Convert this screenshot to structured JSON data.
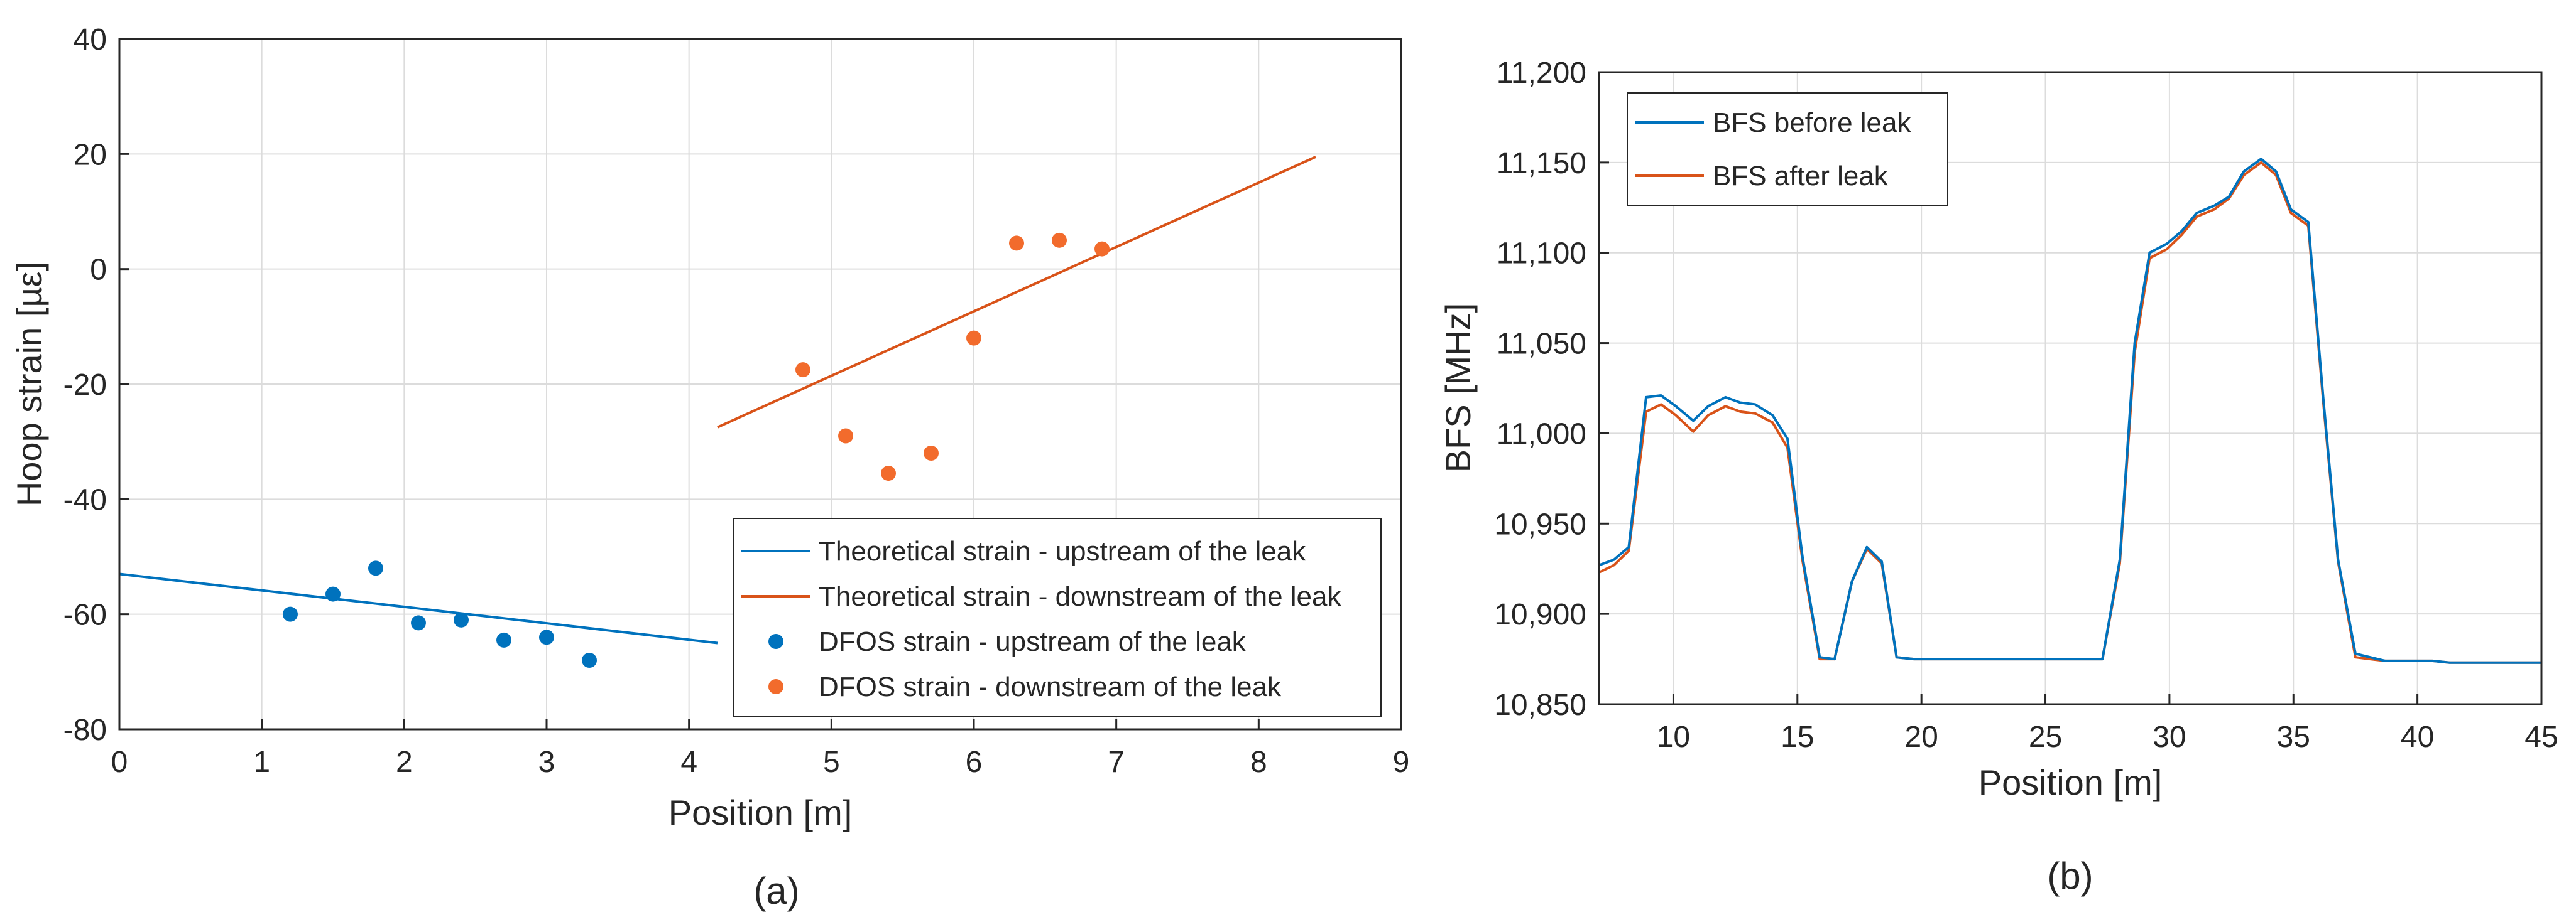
{
  "colors": {
    "blue": "#0072BD",
    "orange": "#D95319",
    "orange_marker": "#F26B2C",
    "grid": "#DCDCDC",
    "axis": "#262626"
  },
  "chart_data": [
    {
      "type": "scatter",
      "panel_label": "(a)",
      "xlabel": "Position [m]",
      "ylabel": "Hoop strain [µε]",
      "xlim": [
        0,
        9
      ],
      "ylim": [
        -80,
        40
      ],
      "xticks": [
        "0",
        "1",
        "2",
        "3",
        "4",
        "5",
        "6",
        "7",
        "8",
        "9"
      ],
      "yticks": [
        "-80",
        "-60",
        "-40",
        "-20",
        "0",
        "20",
        "40"
      ],
      "grid": true,
      "legend_position": "bottom-right",
      "series": [
        {
          "name": "Theoretical strain - upstream of the leak",
          "kind": "line",
          "color": "blue",
          "x": [
            0,
            4.2
          ],
          "y": [
            -53,
            -65
          ]
        },
        {
          "name": "Theoretical strain - downstream of the leak",
          "kind": "line",
          "color": "orange",
          "x": [
            4.2,
            8.4
          ],
          "y": [
            -27.5,
            19.5
          ]
        },
        {
          "name": "DFOS strain - upstream of the leak",
          "kind": "points",
          "color": "blue",
          "x": [
            1.2,
            1.5,
            1.8,
            2.1,
            2.4,
            2.7,
            3.0,
            3.3
          ],
          "y": [
            -60,
            -56.5,
            -52,
            -61.5,
            -61,
            -64.5,
            -64,
            -68
          ]
        },
        {
          "name": "DFOS strain - downstream of the leak",
          "kind": "points",
          "color": "orange_marker",
          "x": [
            4.8,
            5.1,
            5.4,
            5.7,
            6.0,
            6.3,
            6.6,
            6.9
          ],
          "y": [
            -17.5,
            -29,
            -35.5,
            -32,
            -12,
            4.5,
            5,
            3.5
          ]
        }
      ]
    },
    {
      "type": "line",
      "panel_label": "(b)",
      "xlabel": "Position [m]",
      "ylabel": "BFS [MHz]",
      "xlim": [
        7,
        45
      ],
      "ylim": [
        10850,
        11200
      ],
      "xticks": [
        "10",
        "15",
        "20",
        "25",
        "30",
        "35",
        "40",
        "45"
      ],
      "yticks": [
        "10,850",
        "10,900",
        "10,950",
        "11,000",
        "11,050",
        "11,100",
        "11,150",
        "11,200"
      ],
      "grid": true,
      "legend_position": "top-left",
      "x": [
        7,
        7.6,
        8.2,
        8.9,
        9.5,
        10.1,
        10.8,
        11.4,
        12.1,
        12.7,
        13.3,
        14.0,
        14.6,
        15.2,
        15.9,
        16.5,
        17.2,
        17.8,
        18.4,
        19.0,
        19.7,
        20.4,
        21.0,
        21.6,
        22.3,
        22.9,
        23.5,
        24.2,
        24.8,
        25.4,
        26.1,
        26.7,
        27.3,
        28.0,
        28.6,
        29.2,
        29.9,
        30.5,
        31.1,
        31.8,
        32.4,
        33.0,
        33.7,
        34.3,
        34.9,
        35.6,
        36.2,
        36.8,
        37.5,
        38.1,
        38.7,
        39.4,
        40.0,
        40.6,
        41.3,
        41.9,
        42.5,
        43.2,
        43.8,
        44.4,
        45
      ],
      "series": [
        {
          "name": "BFS before leak",
          "color": "blue",
          "values": [
            10927,
            10930,
            10937,
            11020,
            11021,
            11015,
            11007,
            11015,
            11020,
            11017,
            11016,
            11010,
            10997,
            10932,
            10876,
            10875,
            10918,
            10937,
            10929,
            10876,
            10875,
            10875,
            10875,
            10875,
            10875,
            10875,
            10875,
            10875,
            10875,
            10875,
            10875,
            10875,
            10875,
            10930,
            11050,
            11100,
            11105,
            11112,
            11122,
            11126,
            11131,
            11145,
            11152,
            11145,
            11124,
            11117,
            11020,
            10930,
            10878,
            10876,
            10874,
            10874,
            10874,
            10874,
            10873,
            10873,
            10873,
            10873,
            10873,
            10873,
            10873
          ]
        },
        {
          "name": "BFS after leak",
          "color": "orange",
          "values": [
            10923,
            10927,
            10935,
            11012,
            11016,
            11010,
            11001,
            11010,
            11015,
            11012,
            11011,
            11006,
            10992,
            10930,
            10875,
            10875,
            10918,
            10936,
            10928,
            10876,
            10875,
            10875,
            10875,
            10875,
            10875,
            10875,
            10875,
            10875,
            10875,
            10875,
            10875,
            10875,
            10875,
            10928,
            11045,
            11097,
            11102,
            11110,
            11120,
            11124,
            11130,
            11143,
            11150,
            11143,
            11122,
            11115,
            11018,
            10929,
            10876,
            10875,
            10874,
            10874,
            10874,
            10874,
            10873,
            10873,
            10873,
            10873,
            10873,
            10873,
            10873
          ]
        }
      ]
    }
  ]
}
